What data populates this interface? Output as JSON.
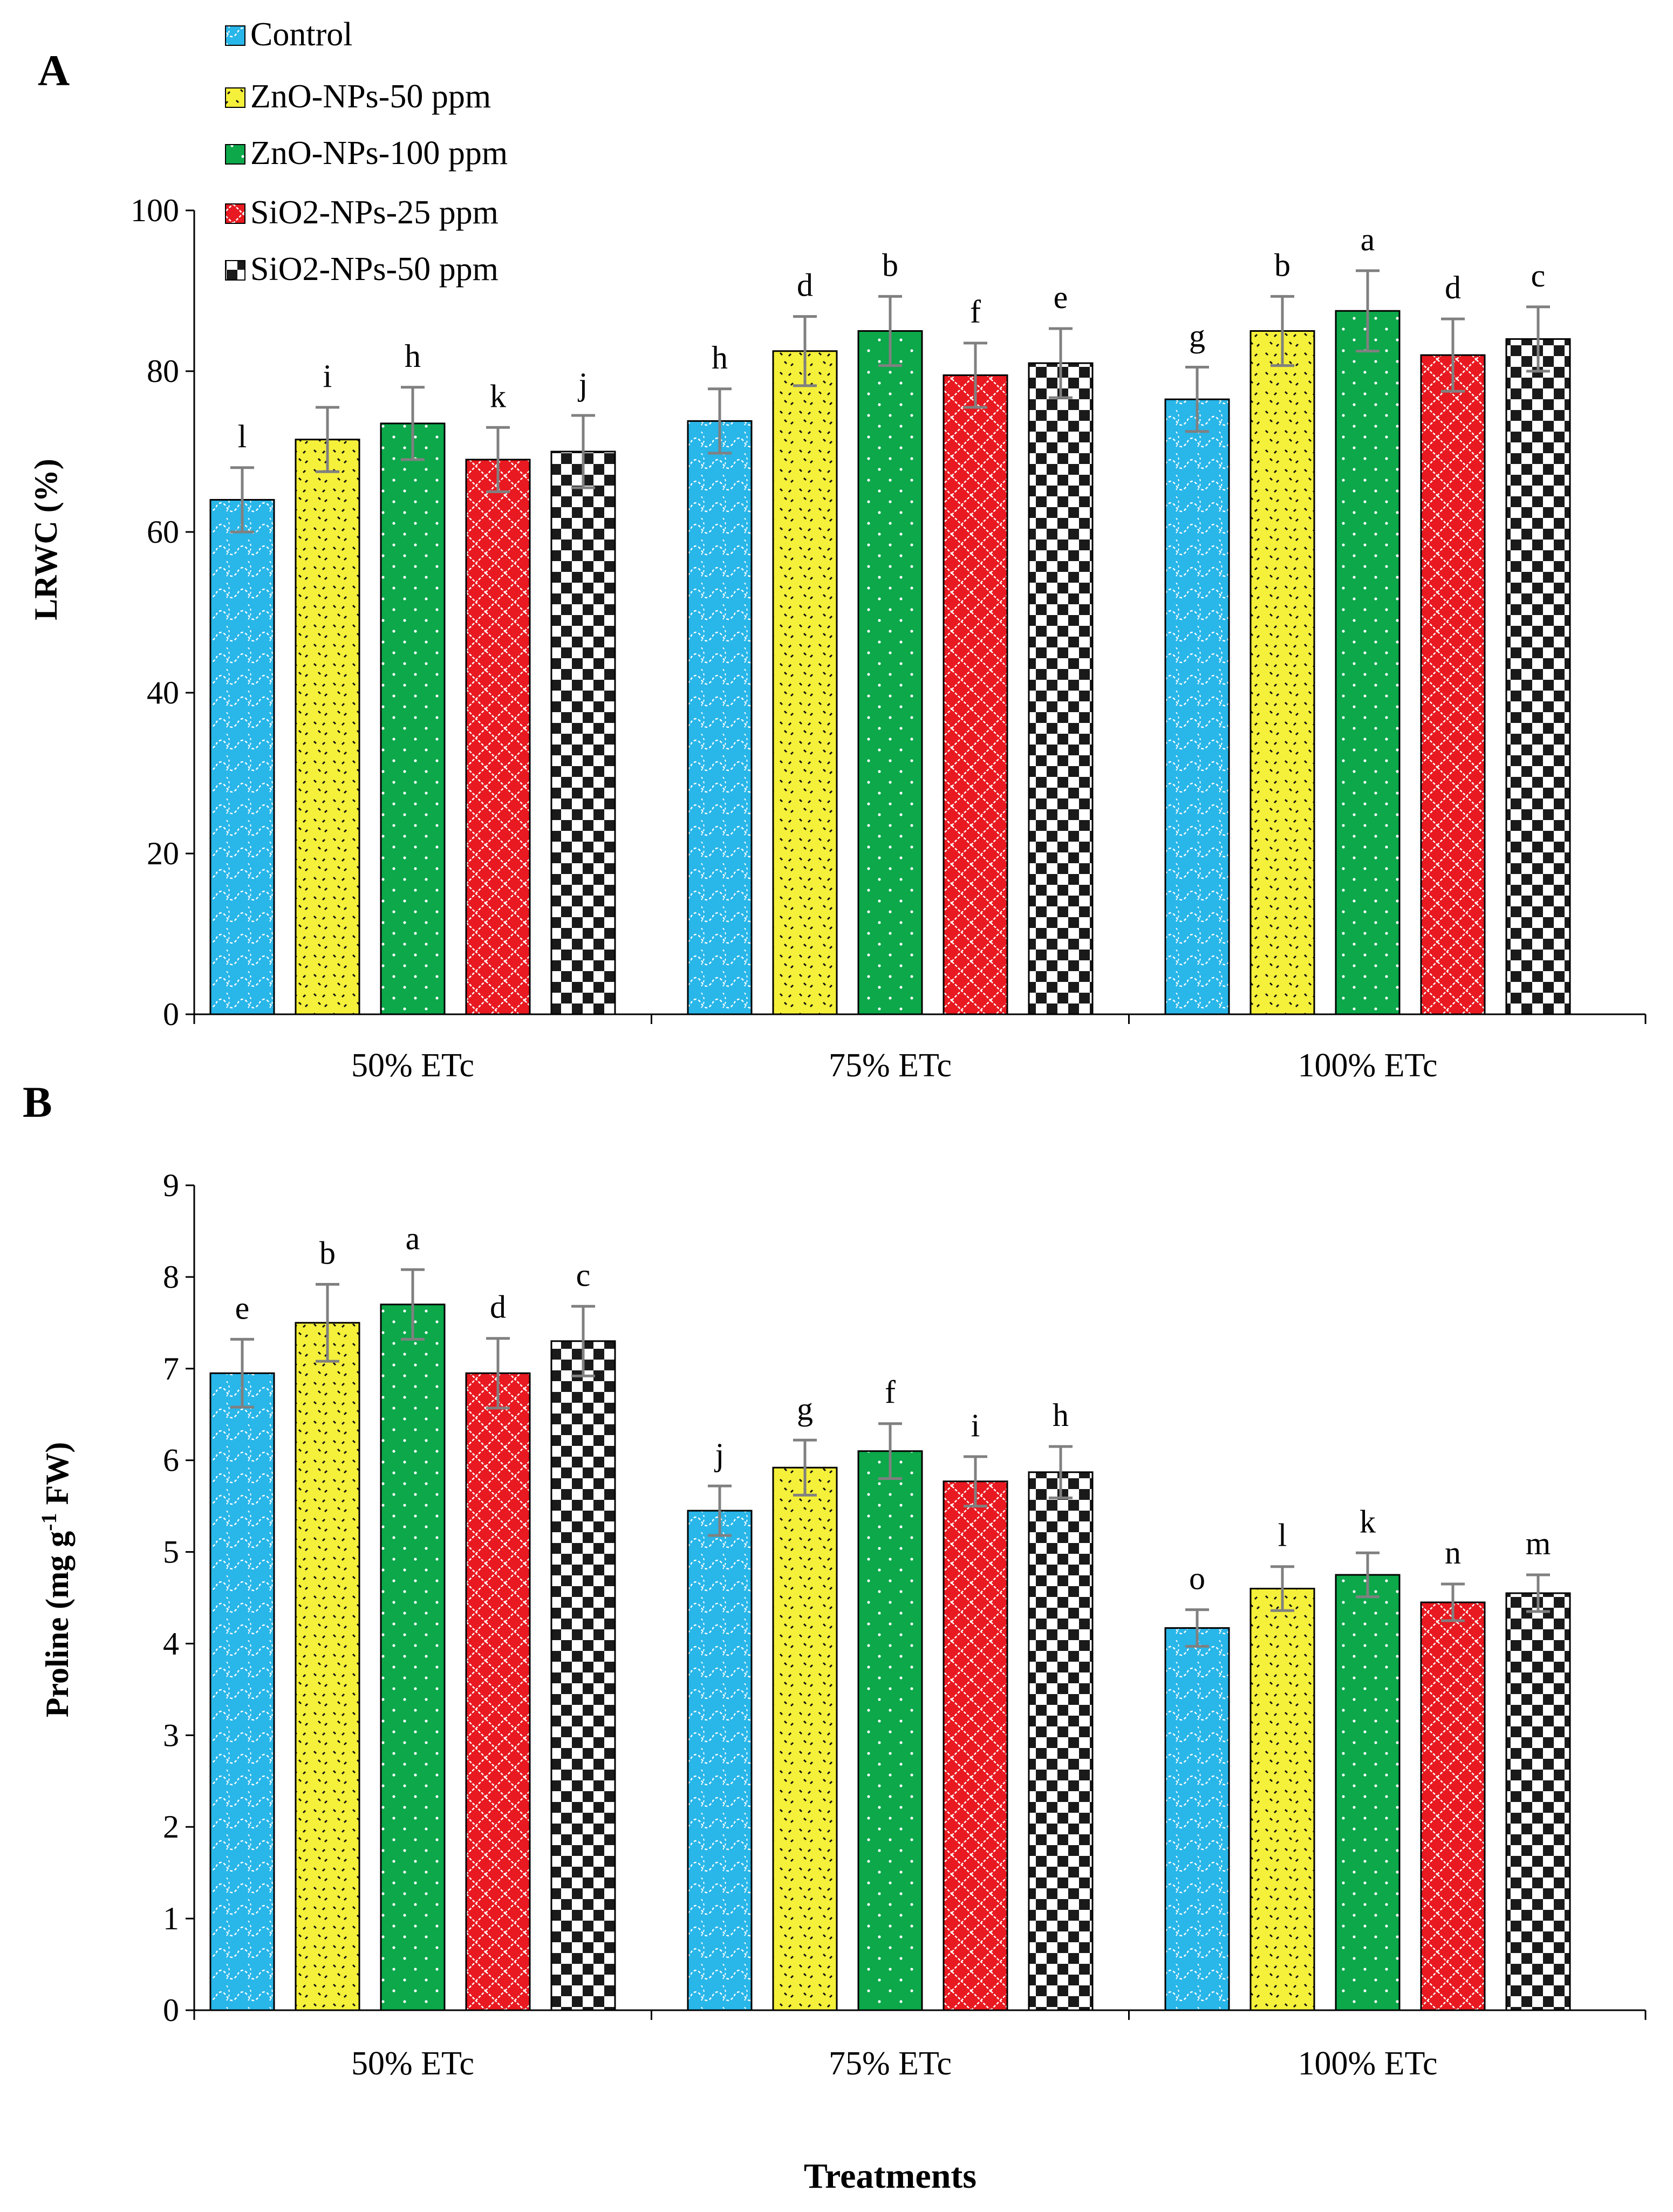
{
  "colors": {
    "control": "#29B6E9",
    "zno50": "#F5F03A",
    "zno100": "#0CA84A",
    "sio25": "#E81920",
    "sio50": "#1A1A1A",
    "axis": "#000000",
    "errorbar": "#808080"
  },
  "legend": {
    "items": [
      {
        "key": "control",
        "label": "Control"
      },
      {
        "key": "zno50",
        "label": "ZnO-NPs-50 ppm"
      },
      {
        "key": "zno100",
        "label": "ZnO-NPs-100 ppm"
      },
      {
        "key": "sio25",
        "label": "SiO2-NPs-25 ppm"
      },
      {
        "key": "sio50",
        "label": "SiO2-NPs-50 ppm"
      }
    ]
  },
  "xlabel_shared": "Treatments",
  "chart_data": [
    {
      "panel_label": "A",
      "type": "bar",
      "title": "",
      "ylabel": "LRWC (%)",
      "xlabel": "",
      "ylim": [
        0,
        100
      ],
      "yticks": [
        "0",
        "20",
        "40",
        "60",
        "80",
        "100"
      ],
      "categories": [
        "50% ETc",
        "75% ETc",
        "100% ETc"
      ],
      "series": [
        {
          "key": "control",
          "name": "Control",
          "values": [
            64,
            73.8,
            76.5
          ],
          "errors": [
            4,
            4,
            4
          ],
          "letters": [
            "l",
            "h",
            "g"
          ]
        },
        {
          "key": "zno50",
          "name": "ZnO-NPs-50 ppm",
          "values": [
            71.5,
            82.5,
            85
          ],
          "errors": [
            4,
            4.3,
            4.3
          ],
          "letters": [
            "i",
            "d",
            "b"
          ]
        },
        {
          "key": "zno100",
          "name": "ZnO-NPs-100 ppm",
          "values": [
            73.5,
            85,
            87.5
          ],
          "errors": [
            4.5,
            4.3,
            5
          ],
          "letters": [
            "h",
            "b",
            "a"
          ]
        },
        {
          "key": "sio25",
          "name": "SiO2-NPs-25 ppm",
          "values": [
            69,
            79.5,
            82
          ],
          "errors": [
            4,
            4,
            4.5
          ],
          "letters": [
            "k",
            "f",
            "d"
          ]
        },
        {
          "key": "sio50",
          "name": "SiO2-NPs-50 ppm",
          "values": [
            70,
            81,
            84
          ],
          "errors": [
            4.5,
            4.3,
            4
          ],
          "letters": [
            "j",
            "e",
            "c"
          ]
        }
      ]
    },
    {
      "panel_label": "B",
      "type": "bar",
      "title": "",
      "ylabel_main": "Proline (mg g",
      "ylabel_sup": "-1",
      "ylabel_end": " FW)",
      "xlabel": "Treatments",
      "ylim": [
        0,
        9
      ],
      "yticks": [
        "0",
        "1",
        "2",
        "3",
        "4",
        "5",
        "6",
        "7",
        "8",
        "9"
      ],
      "categories": [
        "50% ETc",
        "75% ETc",
        "100% ETc"
      ],
      "series": [
        {
          "key": "control",
          "name": "Control",
          "values": [
            6.95,
            5.45,
            4.17
          ],
          "errors": [
            0.37,
            0.27,
            0.2
          ],
          "letters": [
            "e",
            "j",
            "o"
          ]
        },
        {
          "key": "zno50",
          "name": "ZnO-NPs-50 ppm",
          "values": [
            7.5,
            5.92,
            4.6
          ],
          "errors": [
            0.42,
            0.3,
            0.24
          ],
          "letters": [
            "b",
            "g",
            "l"
          ]
        },
        {
          "key": "zno100",
          "name": "ZnO-NPs-100 ppm",
          "values": [
            7.7,
            6.1,
            4.75
          ],
          "errors": [
            0.38,
            0.3,
            0.24
          ],
          "letters": [
            "a",
            "f",
            "k"
          ]
        },
        {
          "key": "sio25",
          "name": "SiO2-NPs-25 ppm",
          "values": [
            6.95,
            5.77,
            4.45
          ],
          "errors": [
            0.38,
            0.27,
            0.2
          ],
          "letters": [
            "d",
            "i",
            "n"
          ]
        },
        {
          "key": "sio50",
          "name": "SiO2-NPs-50 ppm",
          "values": [
            7.3,
            5.87,
            4.55
          ],
          "errors": [
            0.38,
            0.28,
            0.2
          ],
          "letters": [
            "c",
            "h",
            "m"
          ]
        }
      ]
    }
  ]
}
